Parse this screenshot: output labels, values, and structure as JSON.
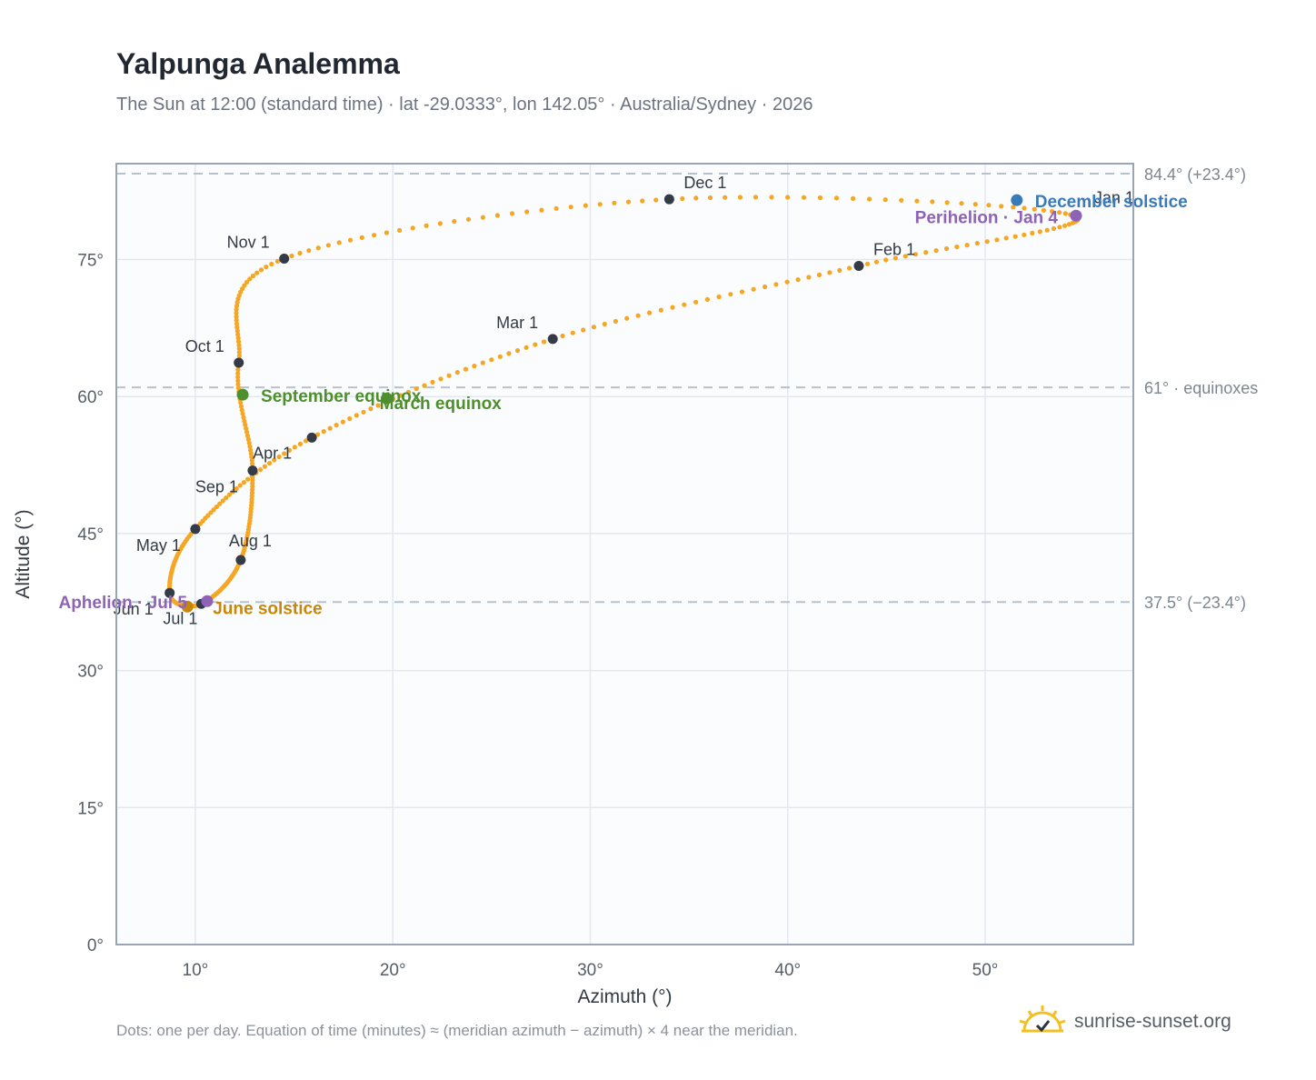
{
  "header": {
    "title": "Yalpunga Analemma",
    "subtitle": "The Sun at 12:00 (standard time) · lat -29.0333°, lon 142.05° · Australia/Sydney · 2026"
  },
  "footer": {
    "note": "Dots: one per day. Equation of time (minutes) ≈ (meridian azimuth − azimuth) × 4 near the meridian.",
    "brand": "sunrise-sunset.org"
  },
  "colors": {
    "path": "#f5a623",
    "month_marker": "#343a46",
    "solstice_december": "#3a7ab8",
    "solstice_june": "#c8860a",
    "equinox": "#4e8f2d",
    "apsis": "#8e63b5",
    "reference_line": "#b8c2cc",
    "plot_background": "#fbfcfe",
    "plot_border": "#9aa5b4"
  },
  "chart_data": {
    "type": "scatter",
    "title": "Yalpunga Analemma",
    "xlabel": "Azimuth (°)",
    "ylabel": "Altitude (°)",
    "xlim": [
      6,
      57.5
    ],
    "ylim": [
      0,
      85.5
    ],
    "x_ticks": [
      10,
      20,
      30,
      40,
      50
    ],
    "x_tick_labels": [
      "10°",
      "20°",
      "30°",
      "40°",
      "50°"
    ],
    "y_ticks": [
      0,
      15,
      30,
      45,
      60,
      75
    ],
    "y_tick_labels": [
      "0°",
      "15°",
      "30°",
      "45°",
      "60°",
      "75°"
    ],
    "grid": true,
    "reference_lines": [
      {
        "y": 84.4,
        "label": "84.4° (+23.4°)"
      },
      {
        "y": 61,
        "label": "61° · equinoxes"
      },
      {
        "y": 37.5,
        "label": "37.5° (−23.4°)"
      }
    ],
    "month_markers": [
      {
        "label": "Jan 1",
        "x": 54.5,
        "y": 79.8
      },
      {
        "label": "Feb 1",
        "x": 43.6,
        "y": 74.3
      },
      {
        "label": "Mar 1",
        "x": 28.1,
        "y": 66.3
      },
      {
        "label": "Apr 1",
        "x": 15.9,
        "y": 55.5
      },
      {
        "label": "May 1",
        "x": 10.0,
        "y": 45.5
      },
      {
        "label": "Jun 1",
        "x": 8.7,
        "y": 38.5
      },
      {
        "label": "Jul 1",
        "x": 10.3,
        "y": 37.3
      },
      {
        "label": "Aug 1",
        "x": 12.3,
        "y": 42.1
      },
      {
        "label": "Sep 1",
        "x": 12.9,
        "y": 51.9
      },
      {
        "label": "Oct 1",
        "x": 12.2,
        "y": 63.7
      },
      {
        "label": "Nov 1",
        "x": 14.5,
        "y": 75.1
      },
      {
        "label": "Dec 1",
        "x": 34.0,
        "y": 81.6
      }
    ],
    "events": [
      {
        "label": "December solstice",
        "x": 51.6,
        "y": 81.5,
        "kind": "solstice_december"
      },
      {
        "label": "Perihelion · Jan 4",
        "x": 54.6,
        "y": 79.8,
        "kind": "apsis"
      },
      {
        "label": "March equinox",
        "x": 19.7,
        "y": 59.8,
        "kind": "equinox"
      },
      {
        "label": "September equinox",
        "x": 12.4,
        "y": 60.2,
        "kind": "equinox"
      },
      {
        "label": "June solstice",
        "x": 9.6,
        "y": 37.0,
        "kind": "solstice_june"
      },
      {
        "label": "Aphelion · Jul 5",
        "x": 10.6,
        "y": 37.6,
        "kind": "apsis"
      }
    ]
  }
}
